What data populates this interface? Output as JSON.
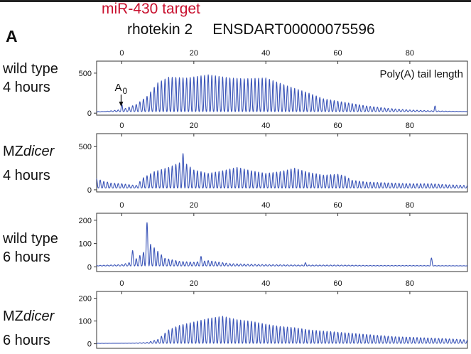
{
  "figure": {
    "red_title": "miR-430 target",
    "gene": "rhotekin 2",
    "transcript": "ENSDART00000075596",
    "panel_letter": "A",
    "annotation": "Poly(A) tail length",
    "marker_label": "A",
    "marker_subscript": "0"
  },
  "rows": [
    {
      "label_line1": "wild type",
      "label_line1_italic": "",
      "label_line2": "4 hours"
    },
    {
      "label_line1": "MZ",
      "label_line1_italic": "dicer",
      "label_line2": "4 hours"
    },
    {
      "label_line1": "wild type",
      "label_line1_italic": "",
      "label_line2": "6 hours"
    },
    {
      "label_line1": "MZ",
      "label_line1_italic": "dicer",
      "label_line2": "6 hours"
    }
  ],
  "chart_data": [
    {
      "type": "line",
      "name_hint": "wild type 4 hours",
      "color": "#3b55b8",
      "xlim": [
        -7,
        96
      ],
      "ylim": [
        -25,
        650
      ],
      "xticks": [
        0,
        20,
        40,
        60,
        80
      ],
      "yticks": [
        0,
        500
      ],
      "baseline": 20,
      "period": 1.0,
      "envelope": [
        [
          -7,
          0
        ],
        [
          -1,
          30
        ],
        [
          1,
          50
        ],
        [
          4,
          100
        ],
        [
          7,
          200
        ],
        [
          10,
          370
        ],
        [
          13,
          440
        ],
        [
          18,
          430
        ],
        [
          24,
          470
        ],
        [
          30,
          430
        ],
        [
          34,
          420
        ],
        [
          40,
          430
        ],
        [
          46,
          330
        ],
        [
          52,
          240
        ],
        [
          56,
          170
        ],
        [
          60,
          140
        ],
        [
          64,
          110
        ],
        [
          68,
          80
        ],
        [
          74,
          50
        ],
        [
          80,
          30
        ],
        [
          86,
          20
        ],
        [
          96,
          10
        ]
      ],
      "spikes": [
        [
          0,
          110
        ],
        [
          87,
          90
        ]
      ]
    },
    {
      "type": "line",
      "name_hint": "MZdicer 4 hours",
      "color": "#3b55b8",
      "xlim": [
        -7,
        96
      ],
      "ylim": [
        -25,
        650
      ],
      "xticks": [
        0,
        20,
        40,
        60,
        80
      ],
      "yticks": [
        0,
        500
      ],
      "baseline": 20,
      "period": 1.0,
      "envelope": [
        [
          -7,
          120
        ],
        [
          -4,
          70
        ],
        [
          0,
          60
        ],
        [
          4,
          40
        ],
        [
          6,
          130
        ],
        [
          9,
          200
        ],
        [
          13,
          250
        ],
        [
          17,
          320
        ],
        [
          20,
          220
        ],
        [
          24,
          180
        ],
        [
          28,
          210
        ],
        [
          32,
          250
        ],
        [
          36,
          210
        ],
        [
          40,
          180
        ],
        [
          44,
          200
        ],
        [
          48,
          240
        ],
        [
          52,
          190
        ],
        [
          56,
          160
        ],
        [
          60,
          170
        ],
        [
          62,
          150
        ],
        [
          64,
          100
        ],
        [
          68,
          80
        ],
        [
          74,
          70
        ],
        [
          80,
          60
        ],
        [
          86,
          60
        ],
        [
          90,
          50
        ],
        [
          96,
          40
        ]
      ],
      "spikes": [
        [
          -4,
          90
        ],
        [
          17,
          420
        ]
      ]
    },
    {
      "type": "line",
      "name_hint": "wild type 6 hours",
      "color": "#3b55b8",
      "xlim": [
        -7,
        96
      ],
      "ylim": [
        -20,
        230
      ],
      "xticks": [
        0,
        20,
        40,
        60,
        80
      ],
      "yticks": [
        0,
        100,
        200
      ],
      "baseline": 4,
      "period": 1.0,
      "envelope": [
        [
          -7,
          4
        ],
        [
          0,
          8
        ],
        [
          3,
          20
        ],
        [
          6,
          60
        ],
        [
          7,
          110
        ],
        [
          9,
          80
        ],
        [
          12,
          35
        ],
        [
          16,
          22
        ],
        [
          20,
          18
        ],
        [
          24,
          25
        ],
        [
          30,
          12
        ],
        [
          40,
          8
        ],
        [
          50,
          6
        ],
        [
          60,
          6
        ],
        [
          70,
          4
        ],
        [
          80,
          4
        ],
        [
          96,
          3
        ]
      ],
      "spikes": [
        [
          3,
          70
        ],
        [
          7,
          190
        ],
        [
          22,
          45
        ],
        [
          51,
          18
        ],
        [
          86,
          38
        ]
      ]
    },
    {
      "type": "line",
      "name_hint": "MZdicer 6 hours",
      "color": "#3b55b8",
      "xlim": [
        -7,
        96
      ],
      "ylim": [
        -20,
        230
      ],
      "xticks": [
        0,
        20,
        40,
        60,
        80
      ],
      "yticks": [
        0,
        100,
        200
      ],
      "baseline": 2,
      "period": 1.0,
      "envelope": [
        [
          -7,
          0
        ],
        [
          3,
          2
        ],
        [
          7,
          5
        ],
        [
          10,
          18
        ],
        [
          13,
          60
        ],
        [
          16,
          80
        ],
        [
          20,
          95
        ],
        [
          24,
          110
        ],
        [
          28,
          120
        ],
        [
          32,
          105
        ],
        [
          36,
          98
        ],
        [
          40,
          85
        ],
        [
          44,
          75
        ],
        [
          48,
          70
        ],
        [
          52,
          60
        ],
        [
          56,
          55
        ],
        [
          60,
          50
        ],
        [
          64,
          45
        ],
        [
          68,
          40
        ],
        [
          72,
          35
        ],
        [
          76,
          30
        ],
        [
          80,
          28
        ],
        [
          86,
          24
        ],
        [
          92,
          20
        ],
        [
          96,
          16
        ]
      ],
      "spikes": []
    }
  ]
}
